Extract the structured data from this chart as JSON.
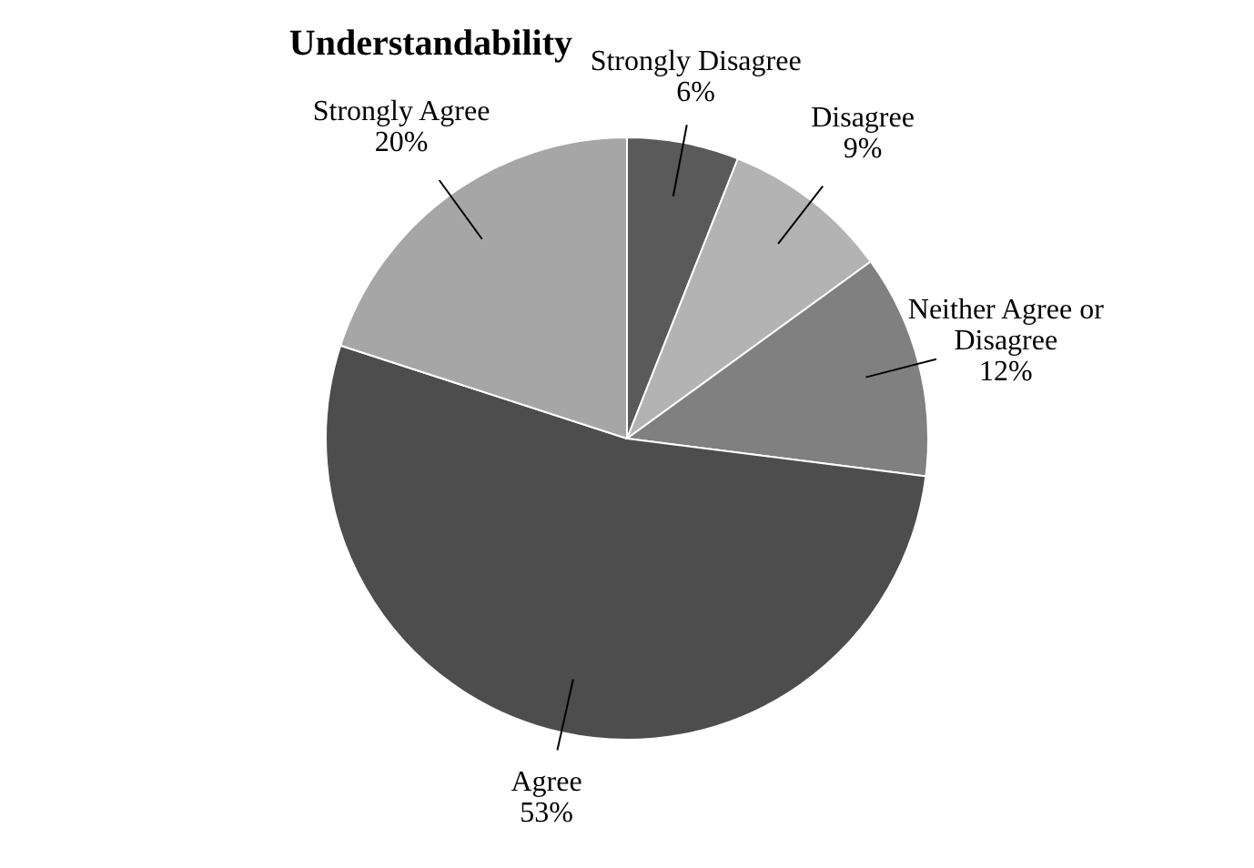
{
  "chart_data": {
    "type": "pie",
    "title": "Understandability",
    "categories": [
      "Strongly Disagree",
      "Disagree",
      "Neither Agree or Disagree",
      "Agree",
      "Strongly Agree"
    ],
    "values": [
      6,
      9,
      12,
      53,
      20
    ],
    "value_labels": [
      "6%",
      "9%",
      "12%",
      "53%",
      "20%"
    ],
    "colors": [
      "#5a5a5a",
      "#b3b3b3",
      "#808080",
      "#4d4d4d",
      "#a6a6a6"
    ],
    "legend": false
  }
}
